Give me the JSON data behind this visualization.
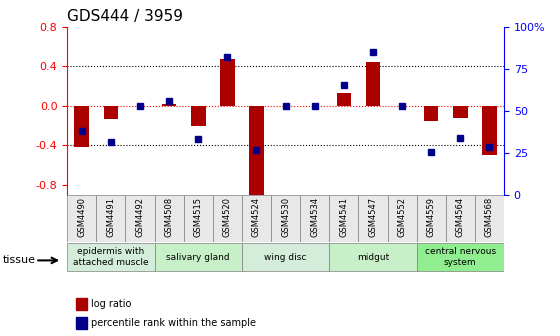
{
  "title": "GDS444 / 3959",
  "samples": [
    "GSM4490",
    "GSM4491",
    "GSM4492",
    "GSM4508",
    "GSM4515",
    "GSM4520",
    "GSM4524",
    "GSM4530",
    "GSM4534",
    "GSM4541",
    "GSM4547",
    "GSM4552",
    "GSM4559",
    "GSM4564",
    "GSM4568"
  ],
  "log_ratio": [
    -0.42,
    -0.13,
    0.0,
    0.02,
    -0.2,
    0.47,
    -0.9,
    0.0,
    0.0,
    0.13,
    0.44,
    0.0,
    -0.15,
    -0.12,
    -0.5
  ],
  "percentile": [
    34,
    27,
    50,
    53,
    29,
    81,
    22,
    50,
    50,
    63,
    84,
    50,
    21,
    30,
    24
  ],
  "tissues": [
    {
      "label": "epidermis with\nattached muscle",
      "start": 0,
      "end": 3,
      "color": "#d4edda"
    },
    {
      "label": "salivary gland",
      "start": 3,
      "end": 6,
      "color": "#c8f0c8"
    },
    {
      "label": "wing disc",
      "start": 6,
      "end": 9,
      "color": "#d4edda"
    },
    {
      "label": "midgut",
      "start": 9,
      "end": 12,
      "color": "#c8f0c8"
    },
    {
      "label": "central nervous\nsystem",
      "start": 12,
      "end": 15,
      "color": "#90EE90"
    }
  ],
  "ylim": [
    -0.9,
    0.8
  ],
  "yticks": [
    -0.8,
    -0.4,
    0.0,
    0.4,
    0.8
  ],
  "right_yticks": [
    0,
    25,
    50,
    75,
    100
  ],
  "right_yticklabels": [
    "0",
    "25",
    "50",
    "75",
    "100%"
  ],
  "bar_color": "#AA0000",
  "dot_color": "#00008B",
  "bg_color": "#ffffff",
  "grid_color": "#000000",
  "zero_line_color": "#FF0000",
  "bar_width": 0.5
}
